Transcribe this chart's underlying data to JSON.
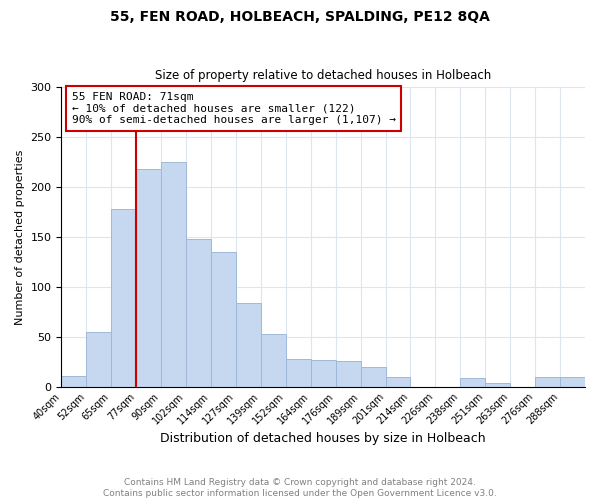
{
  "title1": "55, FEN ROAD, HOLBEACH, SPALDING, PE12 8QA",
  "title2": "Size of property relative to detached houses in Holbeach",
  "xlabel": "Distribution of detached houses by size in Holbeach",
  "ylabel": "Number of detached properties",
  "bin_labels": [
    "40sqm",
    "52sqm",
    "65sqm",
    "77sqm",
    "90sqm",
    "102sqm",
    "114sqm",
    "127sqm",
    "139sqm",
    "152sqm",
    "164sqm",
    "176sqm",
    "189sqm",
    "201sqm",
    "214sqm",
    "226sqm",
    "238sqm",
    "251sqm",
    "263sqm",
    "276sqm",
    "288sqm"
  ],
  "bar_heights": [
    11,
    55,
    178,
    218,
    225,
    148,
    135,
    84,
    53,
    28,
    27,
    26,
    20,
    10,
    0,
    0,
    9,
    4,
    0,
    10,
    10
  ],
  "bar_color": "#c5d8f0",
  "bar_edge_color": "#a0b8d8",
  "vline_x": 3.0,
  "vline_color": "#cc0000",
  "annotation_text": "55 FEN ROAD: 71sqm\n← 10% of detached houses are smaller (122)\n90% of semi-detached houses are larger (1,107) →",
  "annotation_box_color": "#ffffff",
  "annotation_box_edge": "#cc0000",
  "ylim": [
    0,
    300
  ],
  "yticks": [
    0,
    50,
    100,
    150,
    200,
    250,
    300
  ],
  "footer_text": "Contains HM Land Registry data © Crown copyright and database right 2024.\nContains public sector information licensed under the Open Government Licence v3.0.",
  "footer_color": "#808080",
  "background_color": "#ffffff",
  "grid_color": "#dce6f1"
}
